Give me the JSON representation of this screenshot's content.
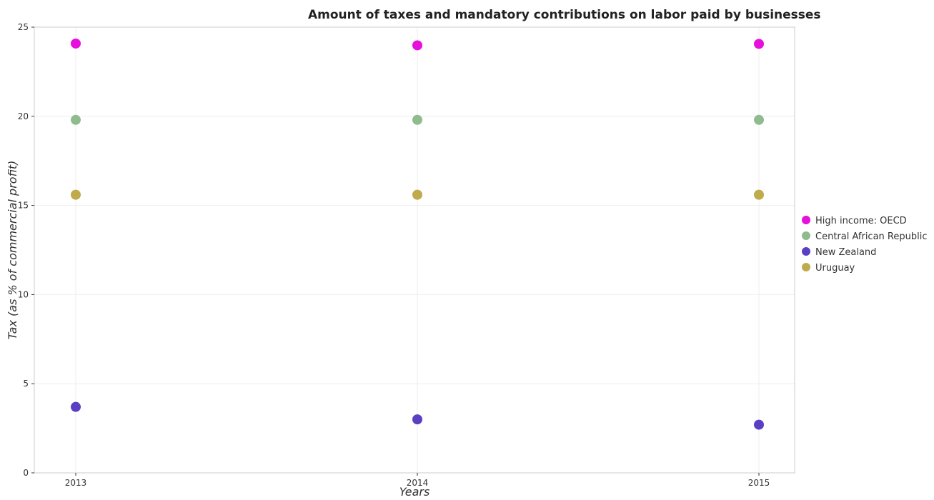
{
  "chart_data": {
    "type": "scatter",
    "title": "Amount of taxes and mandatory contributions on labor paid by businesses",
    "xlabel": "Years",
    "ylabel": "Tax (as % of commercial profit)",
    "categories": [
      "2013",
      "2014",
      "2015"
    ],
    "ylim": [
      0,
      25
    ],
    "yticks": [
      "0",
      "5",
      "10",
      "15",
      "20",
      "25"
    ],
    "grid": true,
    "legend_position": "right",
    "series": [
      {
        "name": "High income: OECD",
        "color": "#e60fdc",
        "values": [
          24.08,
          23.98,
          24.06
        ]
      },
      {
        "name": "Central African Republic",
        "color": "#8fbc8f",
        "values": [
          19.8,
          19.8,
          19.8
        ]
      },
      {
        "name": "New Zealand",
        "color": "#5a3fc4",
        "values": [
          3.7,
          3.0,
          2.7
        ]
      },
      {
        "name": "Uruguay",
        "color": "#bfaa4c",
        "values": [
          15.6,
          15.6,
          15.6
        ]
      }
    ]
  }
}
